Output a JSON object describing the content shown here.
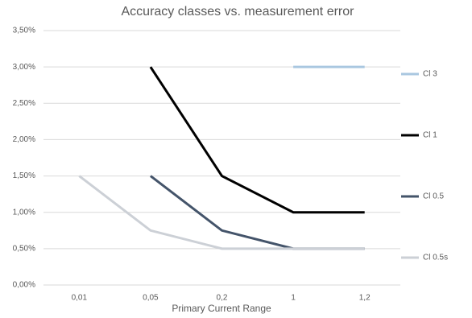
{
  "chart_data": {
    "type": "line",
    "title": "Accuracy classes vs. measurement error",
    "x_label": "Primary Current Range",
    "categories": [
      "0,01",
      "0,05",
      "0,2",
      "1",
      "1,2"
    ],
    "series": [
      {
        "name": "Cl 3",
        "color": "#a9c7e0",
        "values": [
          null,
          null,
          null,
          3,
          3
        ]
      },
      {
        "name": "Cl 1",
        "color": "#000000",
        "values": [
          null,
          3,
          1.5,
          1,
          1
        ]
      },
      {
        "name": "Cl 0.5",
        "color": "#44546a",
        "values": [
          null,
          1.5,
          0.75,
          0.5,
          0.5
        ]
      },
      {
        "name": "Cl 0.5s",
        "color": "#ccd0d6",
        "values": [
          1.5,
          0.75,
          0.5,
          0.5,
          0.5
        ]
      }
    ],
    "ylim": [
      0,
      3.5
    ],
    "yticks": [
      {
        "value": 0,
        "label": "0,00%"
      },
      {
        "value": 0.5,
        "label": "0,50%"
      },
      {
        "value": 1,
        "label": "1,00%"
      },
      {
        "value": 1.5,
        "label": "1,50%"
      },
      {
        "value": 2,
        "label": "2,00%"
      },
      {
        "value": 2.5,
        "label": "2,50%"
      },
      {
        "value": 3,
        "label": "3,00%"
      },
      {
        "value": 3.5,
        "label": "3,50%"
      }
    ],
    "grid": true,
    "legend": "right"
  }
}
